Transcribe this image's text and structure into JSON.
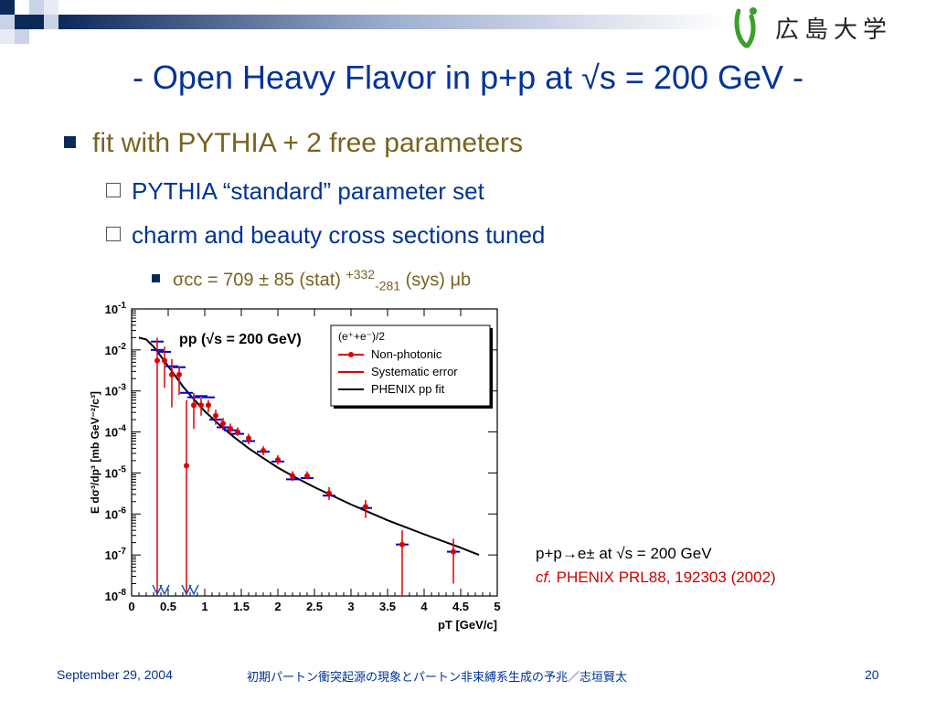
{
  "slide": {
    "title": "- Open Heavy Flavor in p+p at √s = 200 GeV -",
    "logo_text": "広島大学",
    "bullet1": "fit with PYTHIA + 2 free parameters",
    "bullet2": "PYTHIA “standard” parameter set",
    "bullet3": "charm and beauty cross sections tuned",
    "bullet4_main": "σcc = 709 ± 85 (stat) ",
    "bullet4_sup": "+332",
    "bullet4_sub": "-281",
    "bullet4_end": " (sys) μb",
    "ref1": "p+p→e± at √s = 200 GeV",
    "ref2_cf": "cf.",
    "ref2_rest": " PHENIX PRL88, 192303 (2002)",
    "footer_date": "September 29, 2004",
    "footer_center": "初期パートン衝突起源の現象とパートン非束縛系生成の予兆／志垣賢太",
    "footer_page": "20"
  },
  "colors": {
    "title": "#003399",
    "bullet_gold": "#7a6220",
    "data_red": "#dd0000",
    "sys_blue": "#0000cc",
    "fit_black": "#000000",
    "logo_green": "#3aa02a"
  },
  "chart_data": {
    "type": "scatter",
    "title": "pp (√s = 200 GeV)",
    "xlabel": "pT [GeV/c]",
    "ylabel": "E dσ³/dp³ [mb GeV⁻²/c³]",
    "xlim": [
      0,
      5
    ],
    "ylim_log10": [
      -8,
      -1
    ],
    "log_y": true,
    "x_ticks": [
      "0",
      "0.5",
      "1",
      "1.5",
      "2",
      "2.5",
      "3",
      "3.5",
      "4",
      "4.5",
      "5"
    ],
    "y_ticks": [
      "10^-8",
      "10^-7",
      "10^-6",
      "10^-5",
      "10^-4",
      "10^-3",
      "10^-2",
      "10^-1"
    ],
    "legend_position": "top-right",
    "legend_header": "(e⁺+e⁻)/2",
    "series": [
      {
        "name": "Non-photonic",
        "points": [
          {
            "x": 0.35,
            "y": 0.0055,
            "lo": 1e-08,
            "hi": 0.02
          },
          {
            "x": 0.45,
            "y": 0.0055,
            "lo": 0.0012,
            "hi": 0.012
          },
          {
            "x": 0.55,
            "y": 0.0025,
            "lo": 0.0004,
            "hi": 0.006
          },
          {
            "x": 0.65,
            "y": 0.0025,
            "lo": 0.0008,
            "hi": 0.004
          },
          {
            "x": 0.75,
            "y": 1.5e-05,
            "lo": 1e-08,
            "hi": 0.0006
          },
          {
            "x": 0.85,
            "y": 0.00045,
            "lo": 0.00012,
            "hi": 0.0009
          },
          {
            "x": 0.95,
            "y": 0.00045,
            "lo": 0.00025,
            "hi": 0.0007
          },
          {
            "x": 1.05,
            "y": 0.00045,
            "lo": 0.0003,
            "hi": 0.0006
          },
          {
            "x": 1.15,
            "y": 0.00025,
            "lo": 0.00015,
            "hi": 0.00035
          },
          {
            "x": 1.25,
            "y": 0.00016,
            "lo": 0.00011,
            "hi": 0.00022
          },
          {
            "x": 1.35,
            "y": 0.00012,
            "lo": 9e-05,
            "hi": 0.00016
          },
          {
            "x": 1.45,
            "y": 0.0001,
            "lo": 8e-05,
            "hi": 0.00013
          },
          {
            "x": 1.6,
            "y": 7e-05,
            "lo": 5e-05,
            "hi": 9e-05
          },
          {
            "x": 1.8,
            "y": 3.5e-05,
            "lo": 2.7e-05,
            "hi": 4.5e-05
          },
          {
            "x": 2.0,
            "y": 2.1e-05,
            "lo": 1.6e-05,
            "hi": 2.7e-05
          },
          {
            "x": 2.2,
            "y": 8.5e-06,
            "lo": 6.3e-06,
            "hi": 1.1e-05
          },
          {
            "x": 2.4,
            "y": 8.5e-06,
            "lo": 7e-06,
            "hi": 1.1e-05
          },
          {
            "x": 2.7,
            "y": 3.2e-06,
            "lo": 2.2e-06,
            "hi": 4.5e-06
          },
          {
            "x": 3.2,
            "y": 1.5e-06,
            "lo": 8e-07,
            "hi": 2.2e-06
          },
          {
            "x": 3.7,
            "y": 1.8e-07,
            "lo": 1e-08,
            "hi": 4e-07
          },
          {
            "x": 4.4,
            "y": 1.2e-07,
            "lo": 2e-08,
            "hi": 2.5e-07
          }
        ]
      },
      {
        "name": "Systematic error",
        "points": [
          {
            "x": 0.35,
            "y": 0.016
          },
          {
            "x": 0.35,
            "y": 0.01
          },
          {
            "x": 0.45,
            "y": 0.009
          },
          {
            "x": 0.55,
            "y": 0.004
          },
          {
            "x": 0.65,
            "y": 0.0038
          },
          {
            "x": 0.75,
            "y": 0.0009
          },
          {
            "x": 0.85,
            "y": 0.0007
          },
          {
            "x": 0.95,
            "y": 0.00075
          },
          {
            "x": 1.05,
            "y": 0.0007
          },
          {
            "x": 1.15,
            "y": 0.0002
          },
          {
            "x": 1.25,
            "y": 0.00013
          },
          {
            "x": 1.35,
            "y": 0.00011
          },
          {
            "x": 1.45,
            "y": 9e-05
          },
          {
            "x": 1.6,
            "y": 6e-05
          },
          {
            "x": 1.8,
            "y": 3.3e-05
          },
          {
            "x": 2.0,
            "y": 1.9e-05
          },
          {
            "x": 2.2,
            "y": 7e-06
          },
          {
            "x": 2.4,
            "y": 7.5e-06
          },
          {
            "x": 2.7,
            "y": 2.8e-06
          },
          {
            "x": 3.2,
            "y": 1.4e-06
          },
          {
            "x": 3.7,
            "y": 1.8e-07
          },
          {
            "x": 4.4,
            "y": 1.2e-07
          }
        ]
      },
      {
        "name": "PHENIX pp fit",
        "points": [
          {
            "x": 0.1,
            "y": 0.02
          },
          {
            "x": 0.2,
            "y": 0.018
          },
          {
            "x": 0.3,
            "y": 0.012
          },
          {
            "x": 0.4,
            "y": 0.007
          },
          {
            "x": 0.5,
            "y": 0.004
          },
          {
            "x": 0.6,
            "y": 0.0023
          },
          {
            "x": 0.7,
            "y": 0.0013
          },
          {
            "x": 0.8,
            "y": 0.0008
          },
          {
            "x": 0.9,
            "y": 0.0005
          },
          {
            "x": 1.0,
            "y": 0.00032
          },
          {
            "x": 1.2,
            "y": 0.00015
          },
          {
            "x": 1.4,
            "y": 7.5e-05
          },
          {
            "x": 1.6,
            "y": 4e-05
          },
          {
            "x": 1.8,
            "y": 2.3e-05
          },
          {
            "x": 2.0,
            "y": 1.35e-05
          },
          {
            "x": 2.2,
            "y": 8.5e-06
          },
          {
            "x": 2.5,
            "y": 4.5e-06
          },
          {
            "x": 3.0,
            "y": 1.7e-06
          },
          {
            "x": 3.5,
            "y": 7e-07
          },
          {
            "x": 4.0,
            "y": 3.2e-07
          },
          {
            "x": 4.5,
            "y": 1.5e-07
          },
          {
            "x": 4.75,
            "y": 1e-07
          }
        ]
      }
    ],
    "upper_limit_arrows_x": [
      0.35,
      0.45,
      0.75,
      0.85
    ]
  }
}
